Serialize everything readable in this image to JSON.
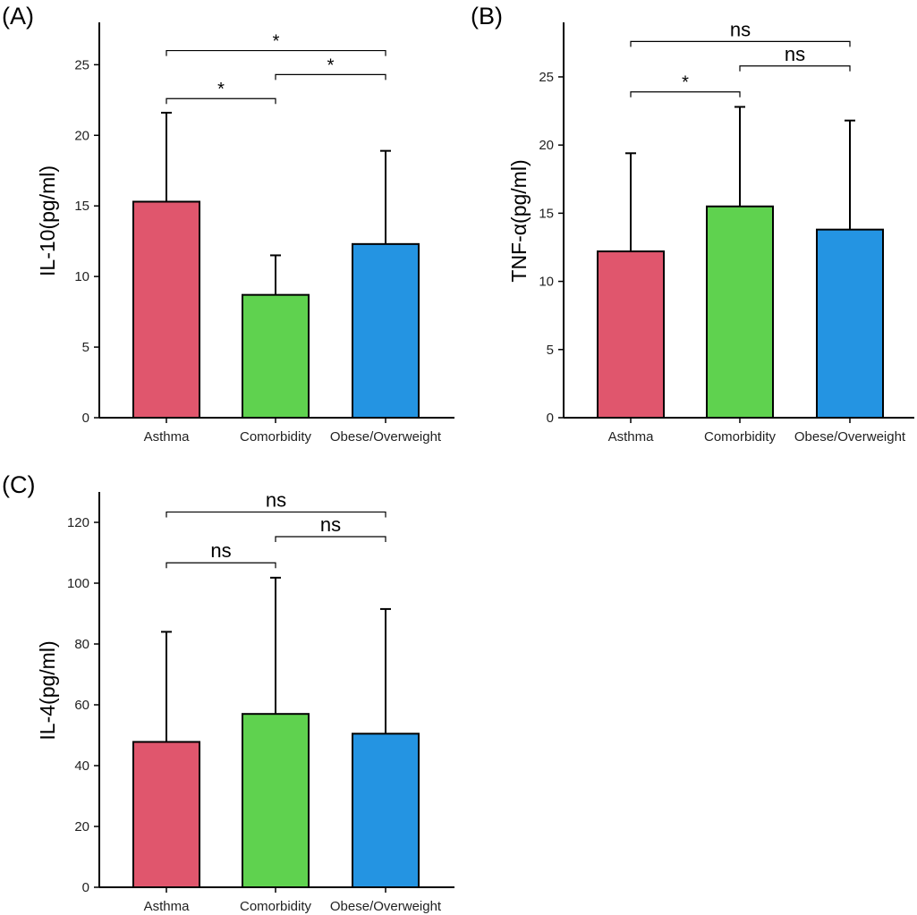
{
  "colors": {
    "Asthma": "#e0566d",
    "Comorbidity": "#5fd24f",
    "Obese/Overweight": "#2494e2"
  },
  "chart_data": [
    {
      "panel": "(A)",
      "type": "bar",
      "ylabel": "IL-10(pg/ml)",
      "categories": [
        "Asthma",
        "Comorbidity",
        "Obese/Overweight"
      ],
      "values": [
        15.3,
        8.7,
        12.3
      ],
      "error_upper": [
        21.6,
        11.5,
        18.9
      ],
      "ylim": [
        0,
        28
      ],
      "yticks": [
        0,
        5,
        10,
        15,
        20,
        25
      ],
      "significance": [
        {
          "from": 0,
          "to": 1,
          "y": 22.6,
          "label": "*"
        },
        {
          "from": 1,
          "to": 2,
          "y": 24.3,
          "label": "*"
        },
        {
          "from": 0,
          "to": 2,
          "y": 26.0,
          "label": "*"
        }
      ]
    },
    {
      "panel": "(B)",
      "type": "bar",
      "ylabel": "TNF-α(pg/ml)",
      "categories": [
        "Asthma",
        "Comorbidity",
        "Obese/Overweight"
      ],
      "values": [
        12.2,
        15.5,
        13.8
      ],
      "error_upper": [
        19.4,
        22.8,
        21.8
      ],
      "ylim": [
        0,
        29
      ],
      "yticks": [
        0,
        5,
        10,
        15,
        20,
        25
      ],
      "significance": [
        {
          "from": 0,
          "to": 1,
          "y": 23.9,
          "label": "*"
        },
        {
          "from": 1,
          "to": 2,
          "y": 25.8,
          "label": "ns"
        },
        {
          "from": 0,
          "to": 2,
          "y": 27.6,
          "label": "ns"
        }
      ]
    },
    {
      "panel": "(C)",
      "type": "bar",
      "ylabel": "IL-4(pg/ml)",
      "categories": [
        "Asthma",
        "Comorbidity",
        "Obese/Overweight"
      ],
      "values": [
        47.8,
        57.0,
        50.5
      ],
      "error_upper": [
        84.0,
        101.8,
        91.5
      ],
      "ylim": [
        0,
        130
      ],
      "yticks": [
        0,
        20,
        40,
        60,
        80,
        100,
        120
      ],
      "significance": [
        {
          "from": 0,
          "to": 1,
          "y": 106.7,
          "label": "ns"
        },
        {
          "from": 1,
          "to": 2,
          "y": 115.3,
          "label": "ns"
        },
        {
          "from": 0,
          "to": 2,
          "y": 123.4,
          "label": "ns"
        }
      ]
    }
  ]
}
